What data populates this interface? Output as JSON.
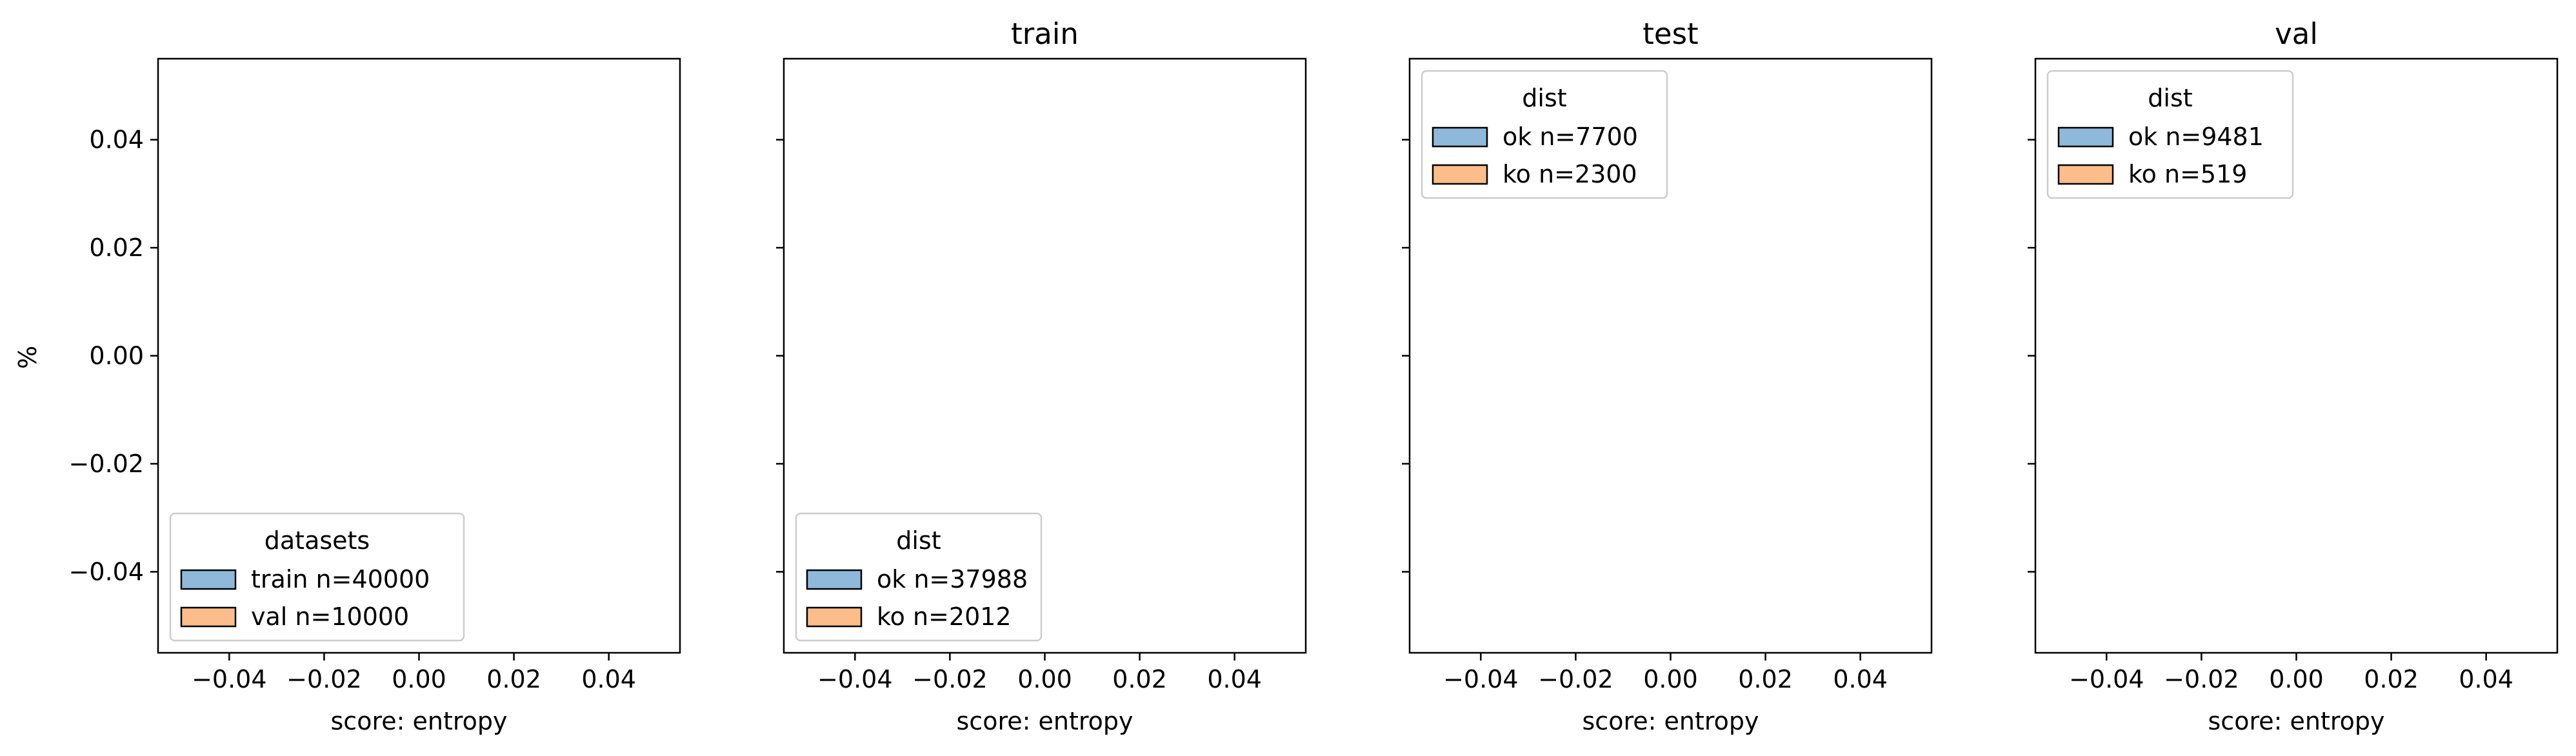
{
  "figure": {
    "ylabel": "%"
  },
  "colors": {
    "series_1": "#8fb9da",
    "series_2": "#fdbd8a",
    "edge": "#000000"
  },
  "chart_data": [
    {
      "type": "bar",
      "title": "",
      "xlabel": "score: entropy",
      "ylabel": "%",
      "xlim": [
        -0.055,
        0.055
      ],
      "ylim": [
        -0.055,
        0.055
      ],
      "xticks": [
        -0.04,
        -0.02,
        0.0,
        0.02,
        0.04
      ],
      "xtick_labels": [
        "−0.04",
        "−0.02",
        "0.00",
        "0.02",
        "0.04"
      ],
      "yticks": [
        0.04,
        0.02,
        0.0,
        -0.02,
        -0.04
      ],
      "ytick_labels": [
        "0.04",
        "0.02",
        "0.00",
        "−0.02",
        "−0.04"
      ],
      "legend": {
        "title": "datasets",
        "position": "lower-left",
        "entries": [
          "train n=40000",
          "val n=10000"
        ]
      },
      "series": [
        {
          "name": "train n=40000",
          "values": []
        },
        {
          "name": "val n=10000",
          "values": []
        }
      ]
    },
    {
      "type": "bar",
      "title": "train",
      "xlabel": "score: entropy",
      "xlim": [
        -0.055,
        0.055
      ],
      "ylim": [
        -0.055,
        0.055
      ],
      "xticks": [
        -0.04,
        -0.02,
        0.0,
        0.02,
        0.04
      ],
      "xtick_labels": [
        "−0.04",
        "−0.02",
        "0.00",
        "0.02",
        "0.04"
      ],
      "yticks": [
        0.04,
        0.02,
        0.0,
        -0.02,
        -0.04
      ],
      "legend": {
        "title": "dist",
        "position": "lower-left",
        "entries": [
          "ok n=37988",
          "ko n=2012"
        ]
      },
      "series": [
        {
          "name": "ok n=37988",
          "values": []
        },
        {
          "name": "ko n=2012",
          "values": []
        }
      ]
    },
    {
      "type": "bar",
      "title": "test",
      "xlabel": "score: entropy",
      "xlim": [
        -0.055,
        0.055
      ],
      "ylim": [
        -0.055,
        0.055
      ],
      "xticks": [
        -0.04,
        -0.02,
        0.0,
        0.02,
        0.04
      ],
      "xtick_labels": [
        "−0.04",
        "−0.02",
        "0.00",
        "0.02",
        "0.04"
      ],
      "yticks": [
        0.04,
        0.02,
        0.0,
        -0.02,
        -0.04
      ],
      "legend": {
        "title": "dist",
        "position": "upper-left",
        "entries": [
          "ok n=7700",
          "ko n=2300"
        ]
      },
      "series": [
        {
          "name": "ok n=7700",
          "values": []
        },
        {
          "name": "ko n=2300",
          "values": []
        }
      ]
    },
    {
      "type": "bar",
      "title": "val",
      "xlabel": "score: entropy",
      "xlim": [
        -0.055,
        0.055
      ],
      "ylim": [
        -0.055,
        0.055
      ],
      "xticks": [
        -0.04,
        -0.02,
        0.0,
        0.02,
        0.04
      ],
      "xtick_labels": [
        "−0.04",
        "−0.02",
        "0.00",
        "0.02",
        "0.04"
      ],
      "yticks": [
        0.04,
        0.02,
        0.0,
        -0.02,
        -0.04
      ],
      "legend": {
        "title": "dist",
        "position": "upper-left",
        "entries": [
          "ok n=9481",
          "ko n=519"
        ]
      },
      "series": [
        {
          "name": "ok n=9481",
          "values": []
        },
        {
          "name": "ko n=519",
          "values": []
        }
      ]
    }
  ]
}
